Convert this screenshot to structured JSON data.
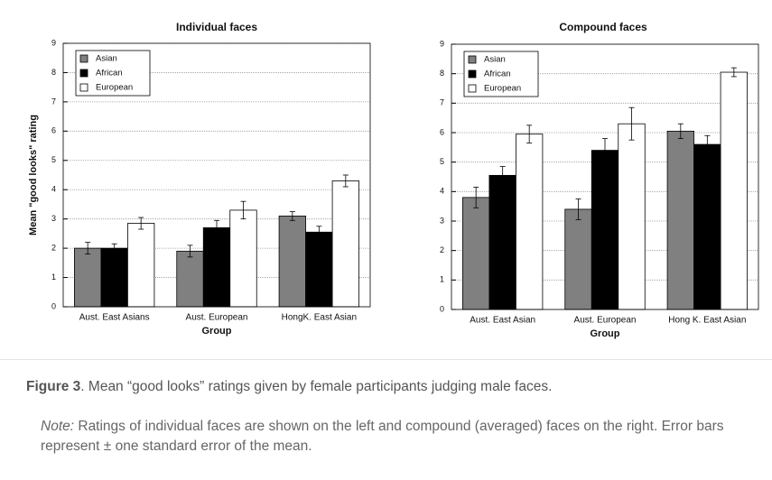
{
  "chart_data": [
    {
      "type": "bar",
      "title": "Individual faces",
      "ylabel": "Mean \"good looks\" rating",
      "xlabel": "Group",
      "categories": [
        "Aust. East Asians",
        "Aust. European",
        "HongK. East Asian"
      ],
      "series": [
        {
          "name": "Asian",
          "color": "#808080",
          "values": [
            2.0,
            1.9,
            3.1
          ],
          "errors": [
            0.2,
            0.2,
            0.15
          ]
        },
        {
          "name": "African",
          "color": "#000000",
          "values": [
            2.0,
            2.7,
            2.55
          ],
          "errors": [
            0.15,
            0.25,
            0.2
          ]
        },
        {
          "name": "European",
          "color": "#ffffff",
          "values": [
            2.85,
            3.3,
            4.3
          ],
          "errors": [
            0.2,
            0.3,
            0.2
          ]
        }
      ],
      "ylim": [
        0,
        9
      ],
      "yticks": [
        0,
        1,
        2,
        3,
        4,
        5,
        6,
        7,
        8,
        9
      ],
      "grid": true,
      "legend": "upper left"
    },
    {
      "type": "bar",
      "title": "Compound faces",
      "xlabel": "Group",
      "categories": [
        "Aust. East Asian",
        "Aust. European",
        "Hong K. East Asian"
      ],
      "series": [
        {
          "name": "Asian",
          "color": "#808080",
          "values": [
            3.8,
            3.4,
            6.05
          ],
          "errors": [
            0.35,
            0.35,
            0.25
          ]
        },
        {
          "name": "African",
          "color": "#000000",
          "values": [
            4.55,
            5.4,
            5.6
          ],
          "errors": [
            0.3,
            0.4,
            0.3
          ]
        },
        {
          "name": "European",
          "color": "#ffffff",
          "values": [
            5.95,
            6.3,
            8.05
          ],
          "errors": [
            0.3,
            0.55,
            0.15
          ]
        }
      ],
      "ylim": [
        0,
        9
      ],
      "yticks": [
        0,
        1,
        2,
        3,
        4,
        5,
        6,
        7,
        8,
        9
      ],
      "grid": true,
      "legend": "upper left"
    }
  ],
  "caption": {
    "label": "Figure 3",
    "text": ". Mean “good looks” ratings given by female participants judging male faces."
  },
  "note": {
    "label": "Note:",
    "text": " Ratings of individual faces are shown on the left and compound (averaged) faces on the right. Error bars represent ± one standard error of the mean."
  }
}
